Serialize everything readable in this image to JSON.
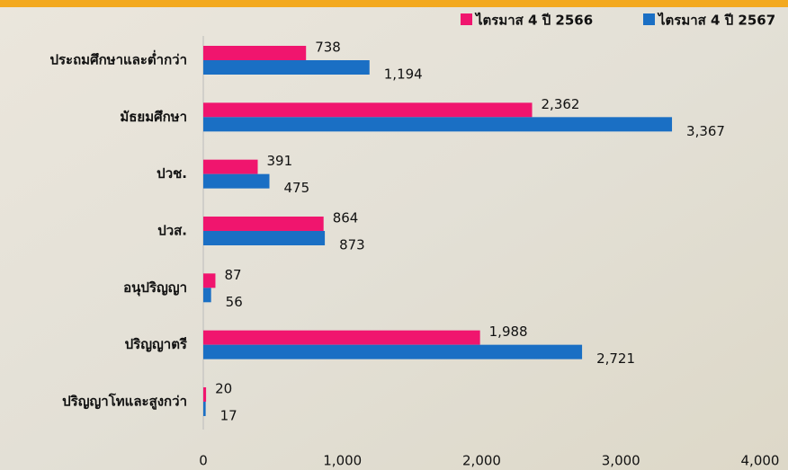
{
  "chart_data": {
    "type": "bar",
    "orientation": "horizontal",
    "categories": [
      "ประถมศึกษาและต่ำกว่า",
      "มัธยมศึกษา",
      "ปวช.",
      "ปวส.",
      "อนุปริญญา",
      "ปริญญาตรี",
      "ปริญญาโทและสูงกว่า"
    ],
    "series": [
      {
        "name": "ไตรมาส 4 ปี 2566",
        "color": "#f0156e",
        "values": [
          738,
          2362,
          391,
          864,
          87,
          1988,
          20
        ],
        "value_labels": [
          "738",
          "2,362",
          "391",
          "864",
          "87",
          "1,988",
          "20"
        ]
      },
      {
        "name": "ไตรมาส 4 ปี 2567",
        "color": "#1a6fc4",
        "values": [
          1194,
          3367,
          475,
          873,
          56,
          2721,
          17
        ],
        "value_labels": [
          "1,194",
          "3,367",
          "475",
          "873",
          "56",
          "2,721",
          "17"
        ]
      }
    ],
    "xlim": [
      0,
      4000
    ],
    "xticks": [
      0,
      {
        "value": 1000,
        "label": "1,000"
      },
      {
        "value": 2000,
        "label": "2,000"
      },
      {
        "value": 3000,
        "label": "3,000"
      },
      {
        "value": 4000,
        "label": "4,000"
      }
    ],
    "legend": "top-right"
  }
}
